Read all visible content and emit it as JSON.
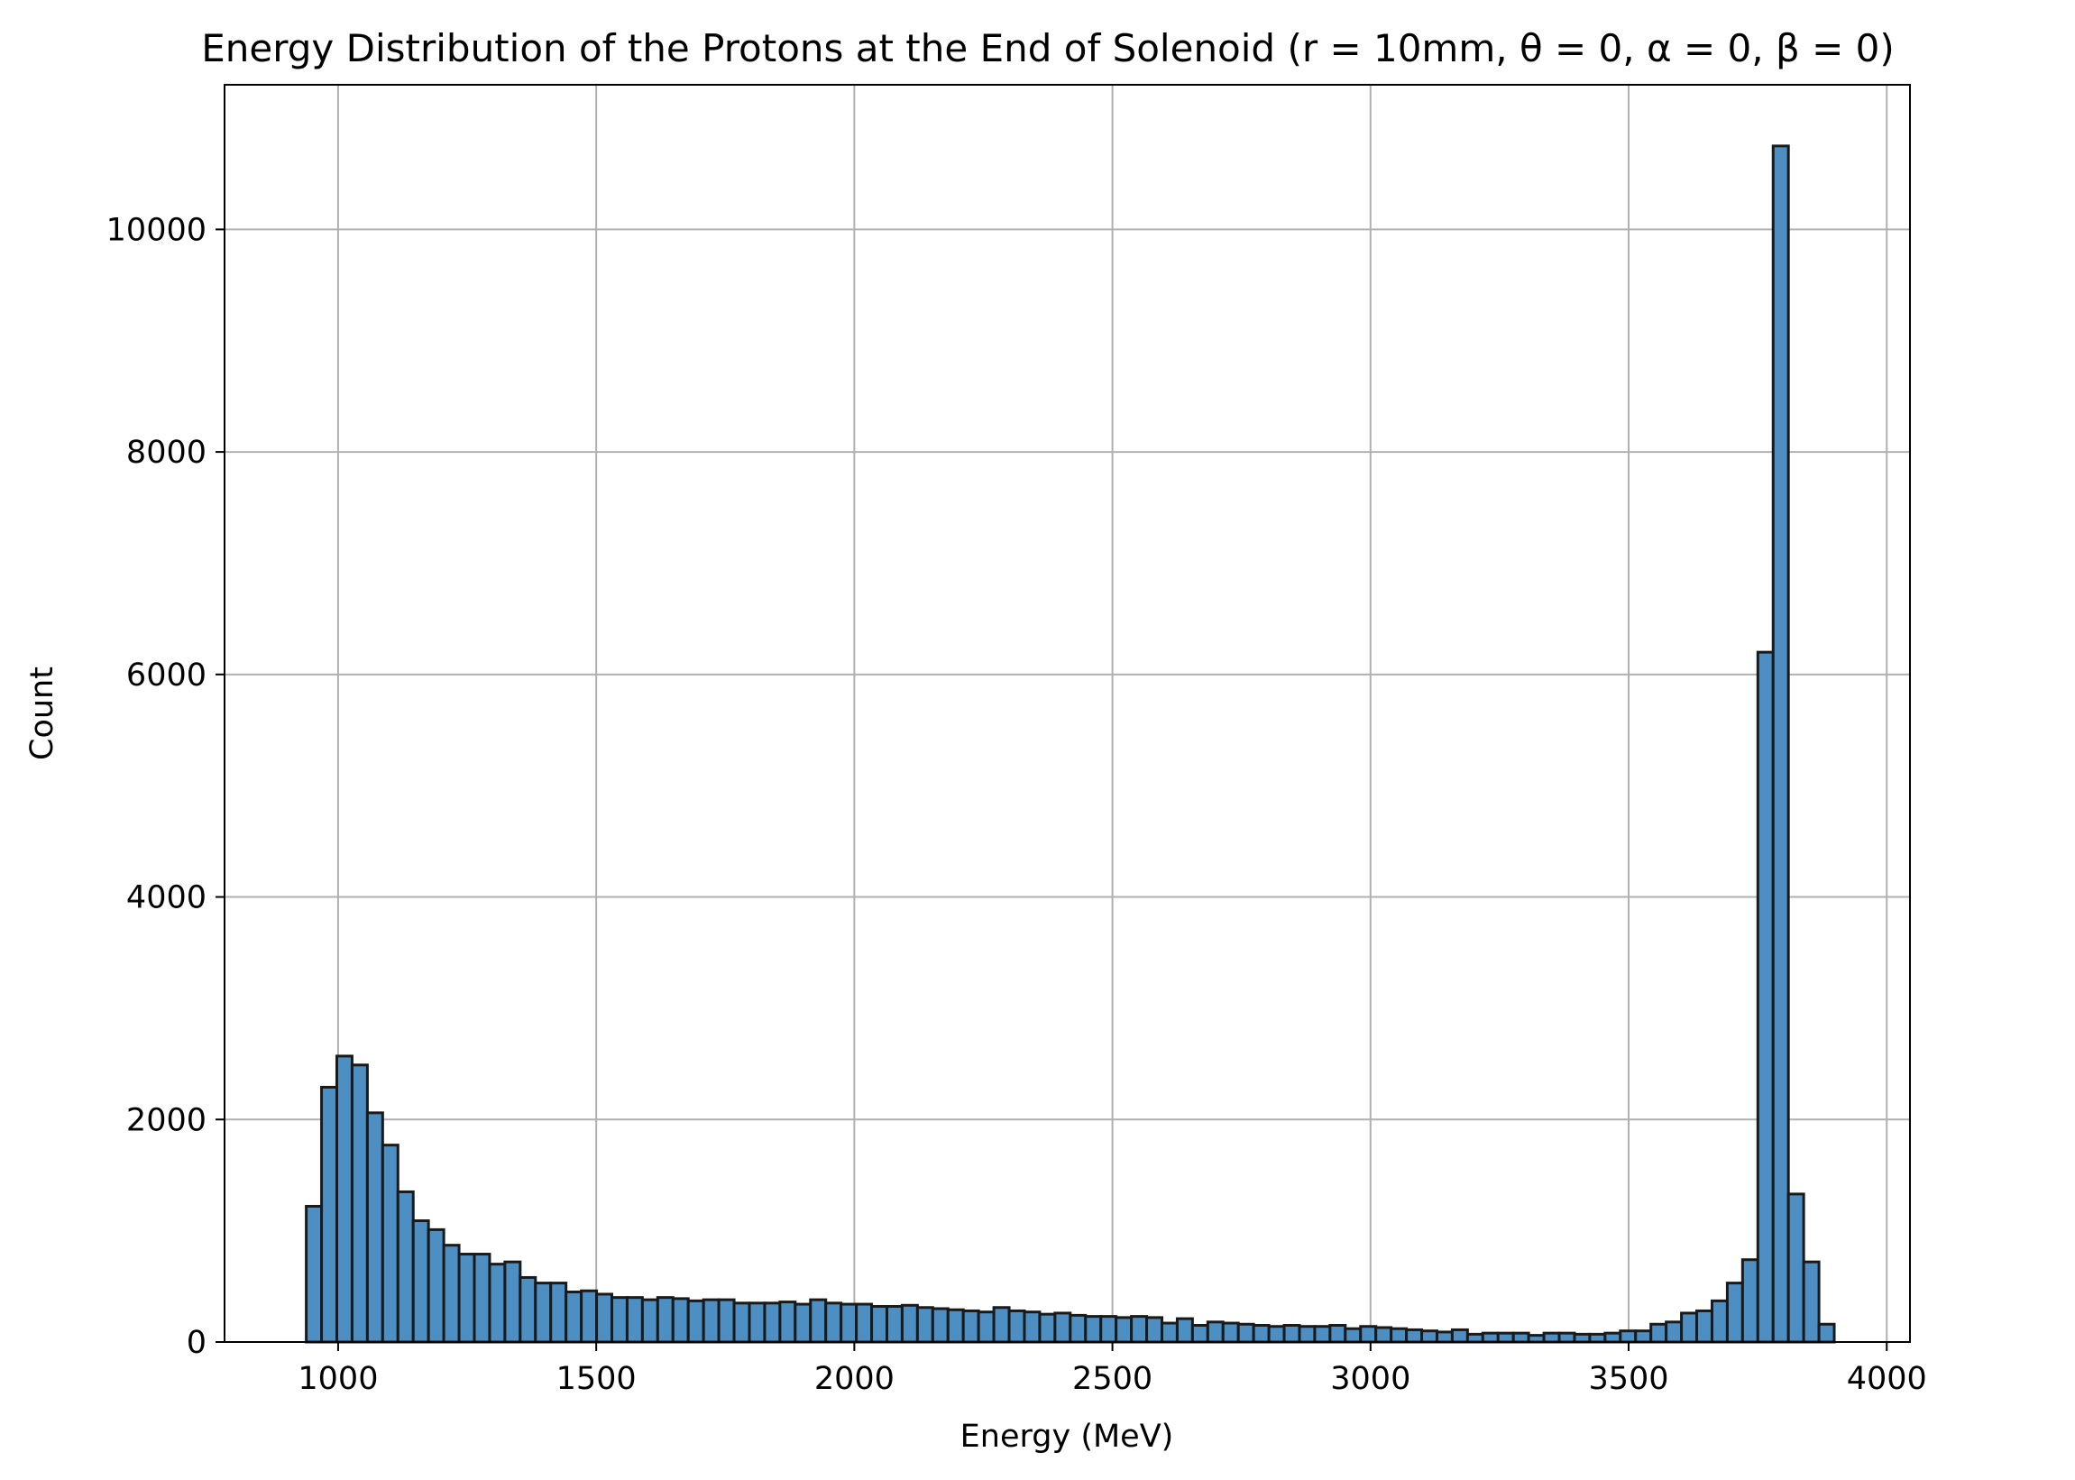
{
  "chart_data": {
    "type": "bar",
    "title": "Energy Distribution of the Protons at the End of Solenoid (r = 10mm, θ = 0, α = 0, β = 0)",
    "xlabel": "Energy (MeV)",
    "ylabel": "Count",
    "xlim": [
      780,
      4045
    ],
    "ylim": [
      0,
      11300
    ],
    "xticks": [
      1000,
      1500,
      2000,
      2500,
      3000,
      3500,
      4000
    ],
    "yticks": [
      0,
      2000,
      4000,
      6000,
      8000,
      10000
    ],
    "grid": true,
    "bin_start": 938.3,
    "bin_width": 29.6,
    "values": [
      1220,
      2290,
      2570,
      2490,
      2060,
      1770,
      1350,
      1090,
      1010,
      870,
      790,
      790,
      700,
      720,
      580,
      530,
      530,
      450,
      460,
      430,
      400,
      400,
      380,
      400,
      390,
      370,
      380,
      380,
      350,
      350,
      350,
      360,
      340,
      380,
      350,
      340,
      340,
      320,
      320,
      330,
      310,
      300,
      290,
      280,
      270,
      310,
      280,
      270,
      250,
      260,
      240,
      230,
      230,
      220,
      230,
      220,
      170,
      210,
      150,
      180,
      170,
      160,
      150,
      140,
      150,
      140,
      140,
      150,
      120,
      140,
      130,
      120,
      110,
      100,
      90,
      110,
      70,
      80,
      80,
      80,
      60,
      80,
      80,
      70,
      70,
      80,
      100,
      100,
      160,
      180,
      260,
      280,
      370,
      530,
      740,
      6200,
      10750,
      1330,
      720,
      160
    ],
    "bar_color": "#4e8fc3",
    "edge_color": "#1a1a1a",
    "grid_color": "#b0b0b0"
  }
}
